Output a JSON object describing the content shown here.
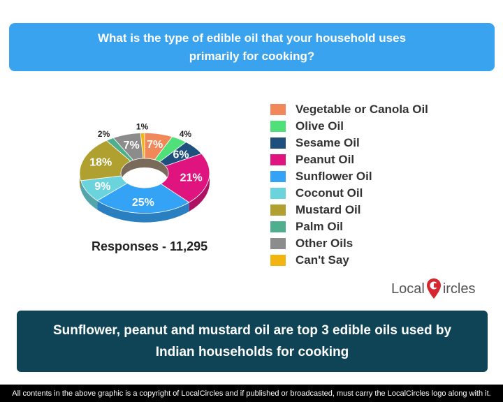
{
  "question": "What is the type of edible oil that your household uses primarily for cooking?",
  "responses_label": "Responses - 11,295",
  "summary": "Sunflower, peanut and mustard oil are top 3 edible oils used by Indian households for cooking",
  "logo": {
    "text_before": "Local",
    "text_after": "ircles",
    "icon": "location-pin-c-icon"
  },
  "footer": "All contents in the above graphic is a copyright of LocalCircles and if published or broadcasted, must carry the LocalCircles logo along with it.",
  "colors": {
    "header_banner": "#3aa3f0",
    "summary_banner": "#0f4457",
    "footer_bg": "#000000",
    "logo_red": "#d7262d"
  },
  "chart_data": {
    "type": "pie",
    "style": "3d-donut",
    "legend_placement": "right",
    "categories": [
      "Vegetable or Canola Oil",
      "Olive Oil",
      "Sesame Oil",
      "Peanut Oil",
      "Sunflower Oil",
      "Coconut Oil",
      "Mustard Oil",
      "Palm Oil",
      "Other Oils",
      "Can't Say"
    ],
    "values": [
      7,
      4,
      6,
      21,
      25,
      9,
      18,
      2,
      7,
      1
    ],
    "labels": [
      "7%",
      "4%",
      "6%",
      "21%",
      "25%",
      "9%",
      "18%",
      "2%",
      "7%",
      "1%"
    ],
    "colors": [
      "#f0885a",
      "#4fe07a",
      "#1e4f7d",
      "#e0147e",
      "#34a3f5",
      "#6ad3dc",
      "#b0a030",
      "#4fae8e",
      "#8c8c8c",
      "#f2b410"
    ]
  }
}
